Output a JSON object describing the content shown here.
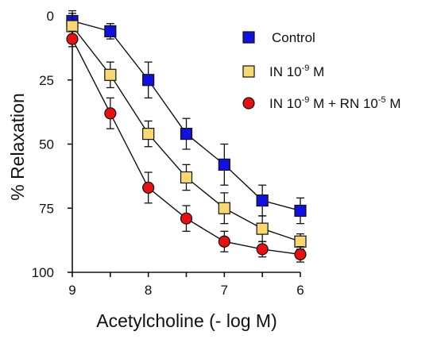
{
  "chart_data": {
    "type": "line",
    "xlabel": "Acetylcholine (- log M)",
    "ylabel": "% Relaxation",
    "xlim": [
      9,
      6
    ],
    "ylim": [
      0,
      100
    ],
    "y_inverted": true,
    "xticks": [
      "9",
      "8",
      "7",
      "6"
    ],
    "yticks": [
      "0",
      "25",
      "50",
      "75",
      "100"
    ],
    "x": [
      9,
      8.5,
      8,
      7.5,
      7,
      6.5,
      6
    ],
    "legend_position": "top-right",
    "grid": false,
    "series": [
      {
        "name": "Control",
        "legend": {
          "pre": "Control",
          "sup1": "",
          "mid": "",
          "sup2": "",
          "post": ""
        },
        "marker": "square",
        "color": "#1010e0",
        "values": [
          2,
          6,
          25,
          46,
          58,
          72,
          76
        ],
        "errors": [
          4,
          3,
          7,
          6,
          8,
          6,
          5
        ]
      },
      {
        "name": "IN 10-9 M",
        "legend": {
          "pre": "IN 10",
          "sup1": "-9",
          "mid": " M",
          "sup2": "",
          "post": ""
        },
        "marker": "square",
        "color": "#f8d870",
        "values": [
          4,
          23,
          46,
          63,
          75,
          83,
          88
        ],
        "errors": [
          5,
          5,
          5,
          5,
          6,
          5,
          3
        ]
      },
      {
        "name": "IN 10-9 M + RN 10-5 M",
        "legend": {
          "pre": "IN 10",
          "sup1": "-9",
          "mid": " M + RN 10",
          "sup2": "-5",
          "post": " M"
        },
        "marker": "circle",
        "color": "#e81010",
        "values": [
          9,
          38,
          67,
          79,
          88,
          91,
          93
        ],
        "errors": [
          3,
          6,
          6,
          5,
          4,
          3,
          3
        ]
      }
    ]
  }
}
